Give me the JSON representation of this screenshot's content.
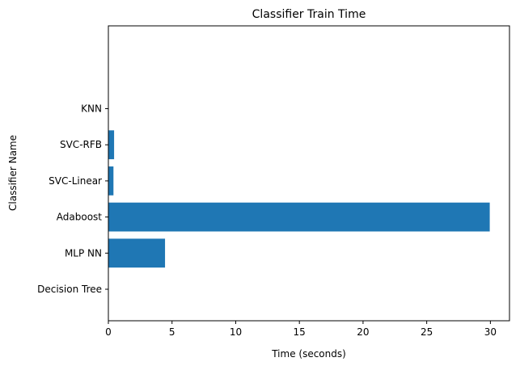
{
  "chart_data": {
    "type": "bar",
    "orientation": "horizontal",
    "title": "Classifier Train Time",
    "xlabel": "Time (seconds)",
    "ylabel": "Classifier Name",
    "categories": [
      "Decision Tree",
      "MLP NN",
      "Adaboost",
      "SVC-Linear",
      "SVC-RFB",
      "KNN"
    ],
    "values": [
      0.02,
      4.45,
      29.95,
      0.4,
      0.45,
      0.01
    ],
    "xlim": [
      0,
      31.5
    ],
    "xticks": [
      0,
      5,
      10,
      15,
      20,
      25,
      30
    ],
    "grid": false,
    "legend": "none",
    "bar_color": "#1f77b4"
  }
}
